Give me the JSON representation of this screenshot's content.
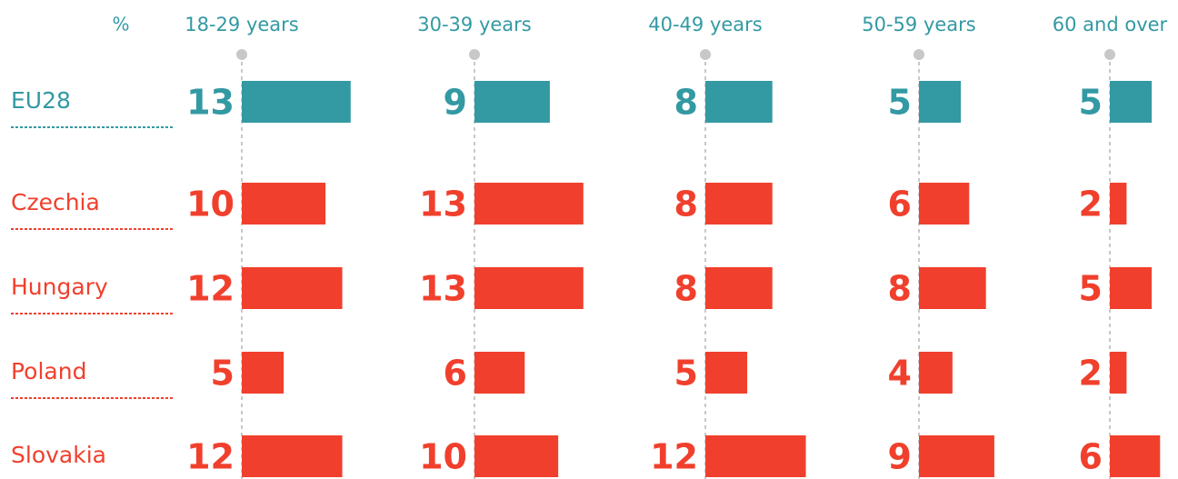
{
  "chart_data": {
    "type": "bar",
    "orientation": "horizontal",
    "unit_label": "%",
    "categories": [
      "EU28",
      "Czechia",
      "Hungary",
      "Poland",
      "Slovakia"
    ],
    "category_colors": [
      "#3399a3",
      "#f0402d",
      "#f0402d",
      "#f0402d",
      "#f0402d"
    ],
    "header_color": "#3399a3",
    "xlim": [
      0,
      14
    ],
    "series": [
      {
        "name": "18-29 years",
        "values": [
          13,
          10,
          12,
          5,
          12
        ]
      },
      {
        "name": "30-39 years",
        "values": [
          9,
          13,
          13,
          6,
          10
        ]
      },
      {
        "name": "40-49 years",
        "values": [
          8,
          8,
          8,
          5,
          12
        ]
      },
      {
        "name": "50-59 years",
        "values": [
          5,
          6,
          8,
          4,
          9
        ]
      },
      {
        "name": "60 and over",
        "values": [
          5,
          2,
          5,
          2,
          6
        ]
      }
    ]
  }
}
